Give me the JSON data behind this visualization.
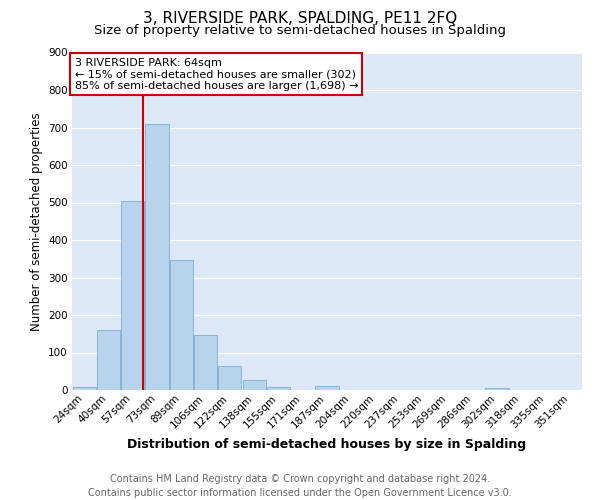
{
  "title": "3, RIVERSIDE PARK, SPALDING, PE11 2FQ",
  "subtitle": "Size of property relative to semi-detached houses in Spalding",
  "xlabel": "Distribution of semi-detached houses by size in Spalding",
  "ylabel": "Number of semi-detached properties",
  "footer_line1": "Contains HM Land Registry data © Crown copyright and database right 2024.",
  "footer_line2": "Contains public sector information licensed under the Open Government Licence v3.0.",
  "bar_labels": [
    "24sqm",
    "40sqm",
    "57sqm",
    "73sqm",
    "89sqm",
    "106sqm",
    "122sqm",
    "138sqm",
    "155sqm",
    "171sqm",
    "187sqm",
    "204sqm",
    "220sqm",
    "237sqm",
    "253sqm",
    "269sqm",
    "286sqm",
    "302sqm",
    "318sqm",
    "335sqm",
    "351sqm"
  ],
  "bar_values": [
    8,
    160,
    505,
    710,
    348,
    148,
    65,
    28,
    8,
    0,
    12,
    0,
    0,
    0,
    0,
    0,
    0,
    5,
    0,
    0,
    0
  ],
  "bar_color": "#b8d4ec",
  "bar_edgecolor": "#85b4d8",
  "plot_bg_color": "#dce8f5",
  "fig_bg_color": "#ffffff",
  "grid_color": "#ffffff",
  "ylim": [
    0,
    900
  ],
  "yticks": [
    0,
    100,
    200,
    300,
    400,
    500,
    600,
    700,
    800,
    900
  ],
  "vline_color": "#cc0000",
  "annotation_text": "3 RIVERSIDE PARK: 64sqm\n← 15% of semi-detached houses are smaller (302)\n85% of semi-detached houses are larger (1,698) →",
  "annotation_box_color": "#cc0000",
  "title_fontsize": 11,
  "subtitle_fontsize": 9.5,
  "xlabel_fontsize": 9,
  "ylabel_fontsize": 8.5,
  "tick_fontsize": 7.5,
  "annot_fontsize": 8,
  "footer_fontsize": 7
}
